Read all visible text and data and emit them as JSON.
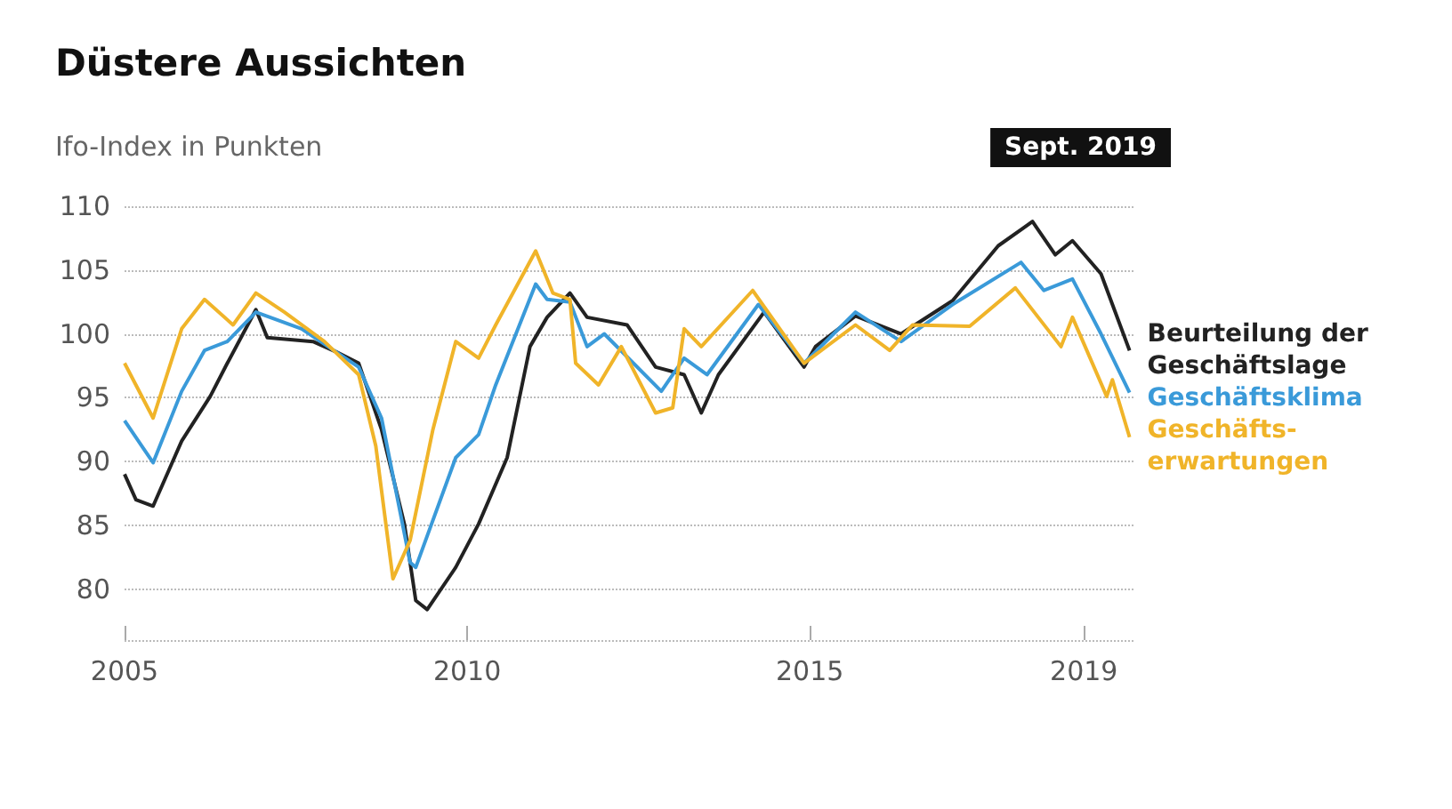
{
  "chart_data": {
    "type": "line",
    "title": "Düstere Aussichten",
    "subtitle": "Ifo-Index in Punkten",
    "xlim": [
      "2005-01",
      "2019-10"
    ],
    "xticks": [
      "2005",
      "2010",
      "2015",
      "2019"
    ],
    "ylim": [
      76,
      110
    ],
    "yticks": [
      80,
      85,
      90,
      95,
      100,
      105,
      110
    ],
    "grid": "y",
    "marker": "none",
    "line_style": "solid",
    "annotations": [
      "Sept. 2019"
    ],
    "series": [
      {
        "name": "Beurteilung der Geschäftslage",
        "color": "#222222",
        "x": [
          "2005-01",
          "2005-03",
          "2005-06",
          "2005-11",
          "2006-04",
          "2006-07",
          "2006-12",
          "2007-02",
          "2007-10",
          "2008-02",
          "2008-06",
          "2008-10",
          "2009-02",
          "2009-04",
          "2009-06",
          "2009-11",
          "2010-03",
          "2010-08",
          "2010-12",
          "2011-03",
          "2011-07",
          "2011-10",
          "2012-05",
          "2012-10",
          "2013-03",
          "2013-06",
          "2013-09",
          "2014-05",
          "2014-12",
          "2015-02",
          "2015-09",
          "2016-05",
          "2017-02",
          "2017-10",
          "2018-04",
          "2018-08",
          "2018-11",
          "2019-04",
          "2019-09"
        ],
        "values": [
          89.0,
          87.0,
          86.5,
          91.6,
          95.1,
          97.7,
          101.9,
          99.7,
          99.4,
          98.6,
          97.7,
          92.5,
          85.1,
          79.1,
          78.4,
          81.7,
          85.1,
          90.3,
          99.0,
          101.3,
          103.2,
          101.3,
          100.7,
          97.4,
          96.8,
          93.8,
          96.8,
          101.7,
          97.4,
          99.0,
          101.4,
          100.0,
          102.6,
          106.9,
          108.8,
          106.2,
          107.3,
          104.7,
          98.7
        ]
      },
      {
        "name": "Geschäftsklima",
        "color": "#3a9ad9",
        "x": [
          "2005-01",
          "2005-06",
          "2005-11",
          "2006-03",
          "2006-07",
          "2006-12",
          "2007-08",
          "2008-06",
          "2008-10",
          "2009-03",
          "2009-04",
          "2009-11",
          "2010-03",
          "2010-06",
          "2011-01",
          "2011-03",
          "2011-07",
          "2011-10",
          "2012-01",
          "2012-11",
          "2013-03",
          "2013-07",
          "2014-04",
          "2014-12",
          "2015-09",
          "2016-05",
          "2017-02",
          "2018-02",
          "2018-06",
          "2018-11",
          "2019-04",
          "2019-09"
        ],
        "values": [
          93.2,
          89.9,
          95.5,
          98.7,
          99.4,
          101.7,
          100.4,
          97.4,
          93.4,
          82.1,
          81.7,
          90.3,
          92.1,
          96.0,
          103.9,
          102.7,
          102.5,
          99.0,
          100.0,
          95.5,
          98.1,
          96.8,
          102.3,
          97.7,
          101.7,
          99.4,
          102.3,
          105.6,
          103.4,
          104.3,
          100.0,
          95.4
        ]
      },
      {
        "name": "Geschäfts-erwartungen",
        "color": "#f0b429",
        "x": [
          "2005-01",
          "2005-06",
          "2005-11",
          "2006-03",
          "2006-08",
          "2006-12",
          "2007-05",
          "2007-12",
          "2008-06",
          "2008-09",
          "2008-12",
          "2009-03",
          "2009-07",
          "2009-11",
          "2010-03",
          "2010-06",
          "2011-01",
          "2011-04",
          "2011-07",
          "2011-08",
          "2011-12",
          "2012-04",
          "2012-10",
          "2013-01",
          "2013-03",
          "2013-06",
          "2014-03",
          "2014-12",
          "2015-09",
          "2016-03",
          "2016-07",
          "2017-05",
          "2018-01",
          "2018-09",
          "2018-11",
          "2019-05",
          "2019-06",
          "2019-09"
        ],
        "values": [
          97.7,
          93.4,
          100.4,
          102.7,
          100.7,
          103.2,
          101.7,
          99.4,
          96.8,
          91.2,
          80.8,
          83.8,
          92.5,
          99.4,
          98.1,
          100.7,
          106.5,
          103.2,
          102.7,
          97.7,
          96.0,
          99.0,
          93.8,
          94.2,
          100.4,
          99.0,
          103.4,
          97.7,
          100.7,
          98.7,
          100.7,
          100.6,
          103.6,
          99.0,
          101.3,
          95.1,
          96.4,
          91.9
        ]
      }
    ]
  }
}
